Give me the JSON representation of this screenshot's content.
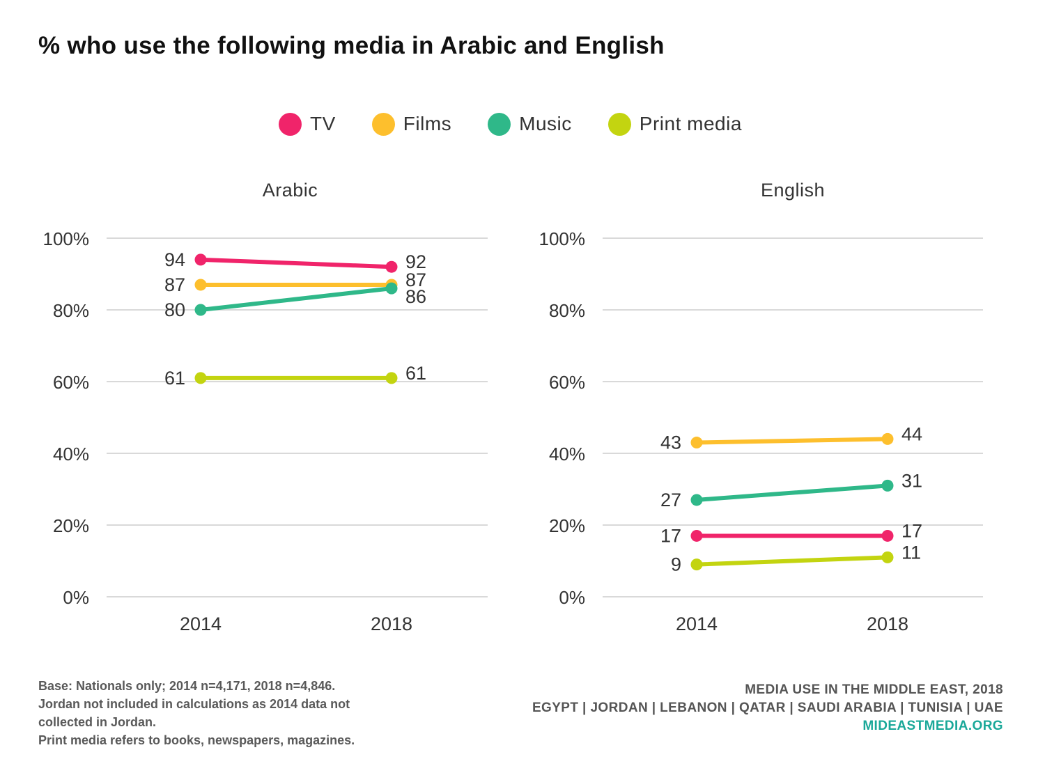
{
  "title": "% who use the following media in Arabic and English",
  "colors": {
    "TV": "#f0246a",
    "Films": "#fdbf2d",
    "Music": "#2fb889",
    "Print media": "#c3d410",
    "grid": "#d9d9d9",
    "text": "#333333"
  },
  "chart_data": [
    {
      "type": "line",
      "title": "Arabic",
      "categories": [
        "2014",
        "2018"
      ],
      "ylim": [
        0,
        100
      ],
      "yticks": [
        "0%",
        "20%",
        "40%",
        "60%",
        "80%",
        "100%"
      ],
      "grid": true,
      "series": [
        {
          "name": "TV",
          "values": [
            94,
            92
          ],
          "labels": [
            "94",
            "92"
          ]
        },
        {
          "name": "Films",
          "values": [
            87,
            87
          ],
          "labels": [
            "87",
            "87"
          ]
        },
        {
          "name": "Music",
          "values": [
            80,
            86
          ],
          "labels": [
            "80",
            "86"
          ]
        },
        {
          "name": "Print media",
          "values": [
            61,
            61
          ],
          "labels": [
            "61",
            "61"
          ]
        }
      ]
    },
    {
      "type": "line",
      "title": "English",
      "categories": [
        "2014",
        "2018"
      ],
      "ylim": [
        0,
        100
      ],
      "yticks": [
        "0%",
        "20%",
        "40%",
        "60%",
        "80%",
        "100%"
      ],
      "grid": true,
      "series": [
        {
          "name": "TV",
          "values": [
            17,
            17
          ],
          "labels": [
            "17",
            "17"
          ]
        },
        {
          "name": "Films",
          "values": [
            43,
            44
          ],
          "labels": [
            "43",
            "44"
          ]
        },
        {
          "name": "Music",
          "values": [
            27,
            31
          ],
          "labels": [
            "27",
            "31"
          ]
        },
        {
          "name": "Print media",
          "values": [
            9,
            11
          ],
          "labels": [
            "9",
            "11"
          ]
        }
      ]
    }
  ],
  "legend": {
    "placement": "top-center",
    "items": [
      "TV",
      "Films",
      "Music",
      "Print media"
    ]
  },
  "footnote": {
    "lines": [
      "Base: Nationals only; 2014 n=4,171, 2018 n=4,846.",
      "Jordan not included in calculations as 2014 data not",
      "collected in Jordan.",
      "Print media refers to books, newspapers, magazines."
    ]
  },
  "source": {
    "line1": "MEDIA USE IN THE MIDDLE EAST, 2018",
    "line2": "EGYPT | JORDAN | LEBANON | QATAR | SAUDI ARABIA | TUNISIA | UAE",
    "site": "MIDEASTMEDIA.ORG"
  }
}
